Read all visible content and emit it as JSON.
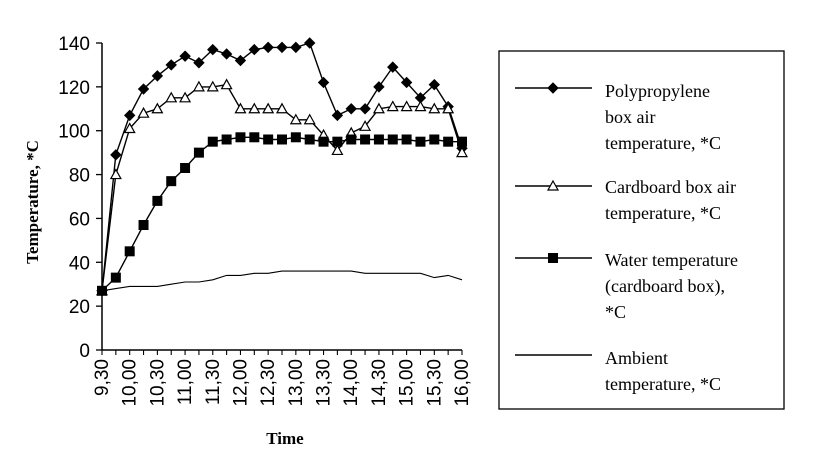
{
  "chart_data": {
    "type": "line",
    "title": "",
    "xlabel": "Time",
    "ylabel": "Temperature, *C",
    "ylim": [
      0,
      140
    ],
    "yticks": [
      0,
      20,
      40,
      60,
      80,
      100,
      120,
      140
    ],
    "grid": false,
    "legend_position": "right",
    "x": [
      "9,30",
      "9,45",
      "10,00",
      "10,15",
      "10,30",
      "10,45",
      "11,00",
      "11,15",
      "11,30",
      "11,45",
      "12,00",
      "12,15",
      "12,30",
      "12,45",
      "13,00",
      "13,15",
      "13,30",
      "13,45",
      "14,00",
      "14,15",
      "14,30",
      "14,45",
      "15,00",
      "15,15",
      "15,30",
      "15,45",
      "16,00"
    ],
    "x_tick_labels": [
      "9,30",
      "10,00",
      "10,30",
      "11,00",
      "11,30",
      "12,00",
      "12,30",
      "13,00",
      "13,30",
      "14,00",
      "14,30",
      "15,00",
      "15,30",
      "16,00"
    ],
    "series": [
      {
        "name": "Polypropylene box air temperature, *C",
        "legend_lines": [
          "Polypropylene",
          "box air",
          "temperature, *C"
        ],
        "marker": "diamond",
        "values": [
          27,
          89,
          107,
          119,
          125,
          130,
          134,
          131,
          137,
          135,
          132,
          137,
          138,
          138,
          138,
          140,
          122,
          107,
          110,
          110,
          120,
          129,
          122,
          115,
          121,
          111,
          92
        ]
      },
      {
        "name": "Cardboard box air temperature, *C",
        "legend_lines": [
          "Cardboard box air",
          "temperature, *C"
        ],
        "marker": "triangle",
        "values": [
          27,
          80,
          101,
          108,
          110,
          115,
          115,
          120,
          120,
          121,
          110,
          110,
          110,
          110,
          105,
          105,
          98,
          91,
          99,
          102,
          110,
          111,
          111,
          111,
          110,
          110,
          90
        ]
      },
      {
        "name": "Water temperature (cardboard box), *C",
        "legend_lines": [
          "Water temperature",
          "(cardboard box),",
          "*C"
        ],
        "marker": "square",
        "values": [
          27,
          33,
          45,
          57,
          68,
          77,
          83,
          90,
          95,
          96,
          97,
          97,
          96,
          96,
          97,
          96,
          95,
          95,
          96,
          96,
          96,
          96,
          96,
          95,
          96,
          95,
          95
        ]
      },
      {
        "name": "Ambient temperature, *C",
        "legend_lines": [
          "Ambient",
          "temperature, *C"
        ],
        "marker": "none",
        "values": [
          27,
          28,
          29,
          29,
          29,
          30,
          31,
          31,
          32,
          34,
          34,
          35,
          35,
          36,
          36,
          36,
          36,
          36,
          36,
          35,
          35,
          35,
          35,
          35,
          33,
          34,
          32
        ]
      }
    ]
  }
}
